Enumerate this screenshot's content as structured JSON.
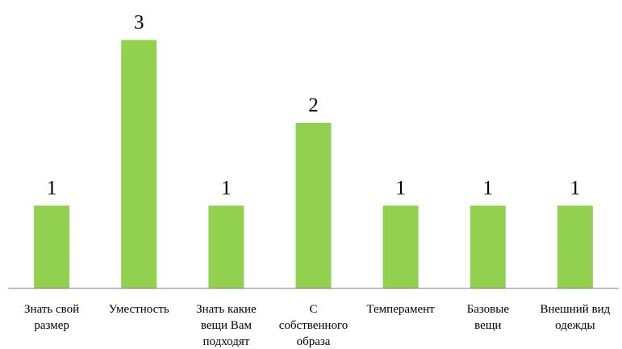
{
  "chart_data": {
    "type": "bar",
    "categories": [
      [
        "Знать свой",
        "размер"
      ],
      [
        "Уместность"
      ],
      [
        "Знать какие",
        "вещи Вам",
        "подходят"
      ],
      [
        "С",
        "собственного",
        "образа"
      ],
      [
        "Темперамент"
      ],
      [
        "Базовые",
        "вещи"
      ],
      [
        "Внешний вид",
        "одежды"
      ]
    ],
    "values": [
      1,
      3,
      1,
      2,
      1,
      1,
      1
    ],
    "data_labels": [
      "1",
      "3",
      "1",
      "2",
      "1",
      "1",
      "1"
    ],
    "ylim": [
      0,
      3
    ],
    "grid": false,
    "legend": "none",
    "colors": {
      "bar": "#92d050",
      "axis": "#808080",
      "text": "#000000"
    }
  }
}
